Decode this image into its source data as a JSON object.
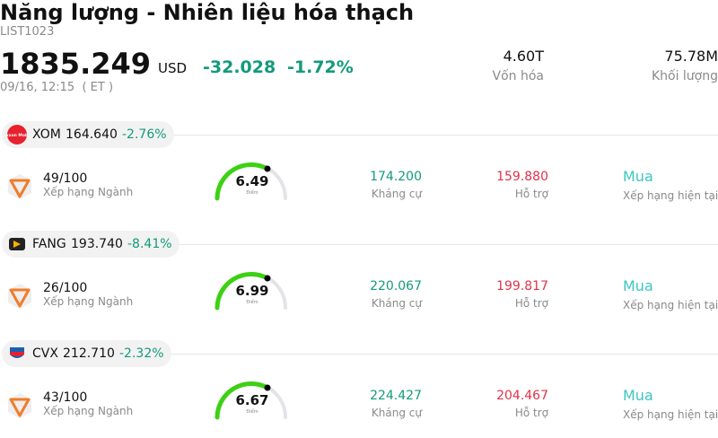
{
  "header": {
    "title": "Năng lượng - Nhiên liệu hóa thạch",
    "code": "LIST1023",
    "price": "1835.249",
    "currency": "USD",
    "change": "-32.028",
    "change_pct": "-1.72%",
    "timestamp": "09/16, 12:15  ( ET )",
    "stats": [
      {
        "value": "4.60T",
        "label": "Vốn hóa"
      },
      {
        "value": "75.78M",
        "label": "Khối lượng"
      }
    ]
  },
  "stocks": [
    {
      "symbol": "XOM",
      "price": "164.640",
      "change_pct": "-2.76%",
      "logo_text": "Exxon Mobil",
      "rank": "49/100",
      "rank_label": "Xếp hạng Ngành",
      "score": "6.49",
      "score_label": "Điểm",
      "resistance": "174.200",
      "resistance_label": "Kháng cự",
      "support": "159.880",
      "support_label": "Hỗ trợ",
      "rating": "Mua",
      "rating_label": "Xếp hạng hiện tại"
    },
    {
      "symbol": "FANG",
      "price": "193.740",
      "change_pct": "-8.41%",
      "rank": "26/100",
      "rank_label": "Xếp hạng Ngành",
      "score": "6.99",
      "score_label": "Điểm",
      "resistance": "220.067",
      "resistance_label": "Kháng cự",
      "support": "199.817",
      "support_label": "Hỗ trợ",
      "rating": "Mua",
      "rating_label": "Xếp hạng hiện tại"
    },
    {
      "symbol": "CVX",
      "price": "212.710",
      "change_pct": "-2.32%",
      "rank": "43/100",
      "rank_label": "Xếp hạng Ngành",
      "score": "6.67",
      "score_label": "Điểm",
      "resistance": "224.427",
      "resistance_label": "Kháng cự",
      "support": "204.467",
      "support_label": "Hỗ trợ",
      "rating": "Mua",
      "rating_label": "Xếp hạng hiện tại"
    }
  ]
}
